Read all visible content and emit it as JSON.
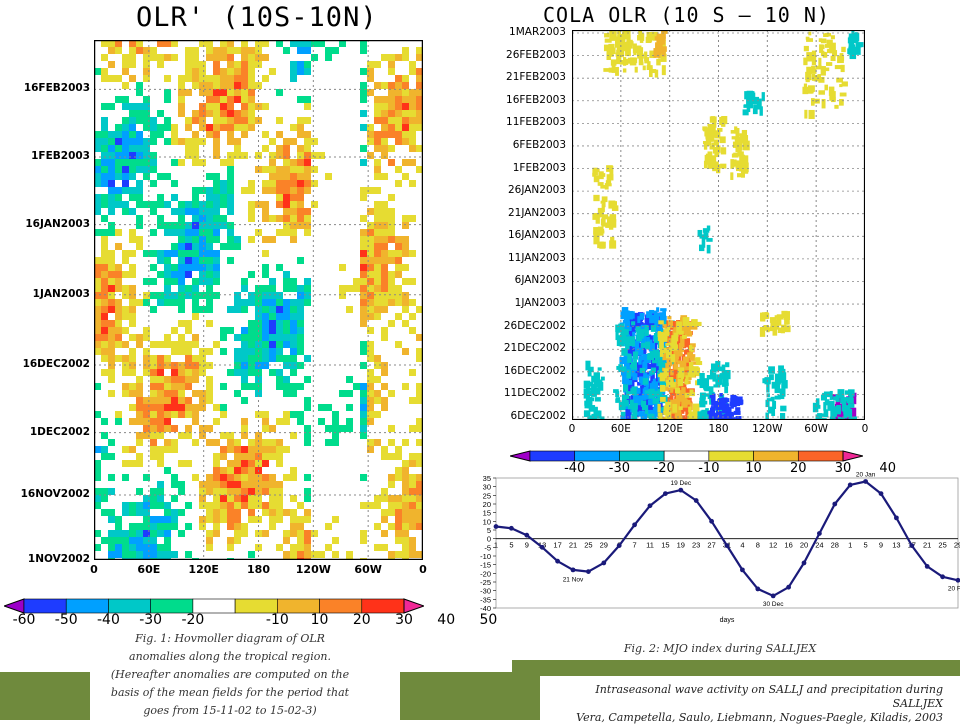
{
  "chart_data": [
    {
      "type": "heatmap",
      "title": "OLR' (10S-10N)",
      "xlabel": "",
      "ylabel": "",
      "x_tick_labels": [
        "0",
        "60E",
        "120E",
        "180",
        "120W",
        "60W",
        "0"
      ],
      "y_tick_labels": [
        "16FEB2003",
        "1FEB2003",
        "16JAN2003",
        "1JAN2003",
        "16DEC2002",
        "1DEC2002",
        "16NOV2002",
        "1NOV2002"
      ],
      "colorbar_labels": [
        "-60",
        "-50",
        "-40",
        "-30",
        "-20",
        "-10",
        "10",
        "20",
        "30",
        "40",
        "50"
      ],
      "colorbar_colors": [
        "#9b00c8",
        "#1e3cff",
        "#00a0ff",
        "#00c8c8",
        "#00dc8c",
        "#ffffff",
        "#e6dc32",
        "#f0b42d",
        "#fa8228",
        "#ff3219",
        "#f02896"
      ],
      "caption": [
        "Fig. 1: Hovmoller diagram of OLR",
        "anomalies along the tropical region.",
        "(Hereafter anomalies are computed on the",
        "basis of the mean fields for the period that",
        "goes from 15-11-02 to 15-02-3)"
      ]
    },
    {
      "type": "heatmap",
      "title": "COLA OLR (10 S – 10 N)",
      "x_tick_labels": [
        "0",
        "60E",
        "120E",
        "180",
        "120W",
        "60W",
        "0"
      ],
      "y_tick_labels": [
        "1MAR2003",
        "26FEB2003",
        "21FEB2003",
        "16FEB2003",
        "11FEB2003",
        "6FEB2003",
        "1FEB2003",
        "26JAN2003",
        "21JAN2003",
        "16JAN2003",
        "11JAN2003",
        "6JAN2003",
        "1JAN2003",
        "26DEC2002",
        "21DEC2002",
        "16DEC2002",
        "11DEC2002",
        "6DEC2002"
      ],
      "colorbar_labels": [
        "-40",
        "-30",
        "-20",
        "-10",
        "10",
        "20",
        "30",
        "40"
      ],
      "colorbar_colors": [
        "#a000c8",
        "#1e3cff",
        "#00a0ff",
        "#00c8c8",
        "#ffffff",
        "#e6dc32",
        "#f0b42d",
        "#fa6428",
        "#f02896"
      ]
    },
    {
      "type": "line",
      "title": "MJO index during SALLJEX",
      "xlabel": "days",
      "ylim": [
        -40,
        35
      ],
      "y_ticks": [
        35,
        30,
        25,
        20,
        15,
        10,
        5,
        0,
        -5,
        -10,
        -15,
        -20,
        -25,
        -30,
        -35,
        -40
      ],
      "x_tick_labels": [
        "1",
        "5",
        "9",
        "13",
        "17",
        "21",
        "25",
        "29",
        "3",
        "7",
        "11",
        "15",
        "19",
        "23",
        "27",
        "31",
        "4",
        "8",
        "12",
        "16",
        "20",
        "24",
        "28",
        "1",
        "5",
        "9",
        "13",
        "17",
        "21",
        "25",
        "29"
      ],
      "series": [
        {
          "name": "MJO index",
          "x": [
            0,
            4,
            8,
            12,
            16,
            20,
            24,
            28,
            32,
            36,
            40,
            44,
            48,
            52,
            56,
            60,
            64,
            68,
            72,
            76,
            80,
            84,
            88,
            92,
            96,
            100,
            104,
            108,
            112,
            116,
            120
          ],
          "values": [
            7,
            6,
            2,
            -5,
            -13,
            -18,
            -19,
            -14,
            -4,
            8,
            19,
            26,
            28,
            22,
            10,
            -4,
            -18,
            -29,
            -33,
            -28,
            -14,
            3,
            20,
            31,
            33,
            26,
            12,
            -4,
            -16,
            -22,
            -24
          ]
        }
      ],
      "annotations": [
        {
          "label": "21 Nov",
          "x": 20,
          "y": -19
        },
        {
          "label": "19 Dec",
          "x": 48,
          "y": 28
        },
        {
          "label": "30 Dec",
          "x": 72,
          "y": -33
        },
        {
          "label": "20 Jan",
          "x": 96,
          "y": 33
        },
        {
          "label": "20 Feb",
          "x": 120,
          "y": -24
        }
      ],
      "caption": "Fig. 2: MJO index during SALLJEX"
    }
  ],
  "footer": {
    "line1": "Intraseasonal wave activity on SALLJ and precipitation during SALLJEX",
    "line2": "Vera, Campetella, Saulo, Liebmann, Nogues-Paegle, Kiladis, 2003"
  }
}
